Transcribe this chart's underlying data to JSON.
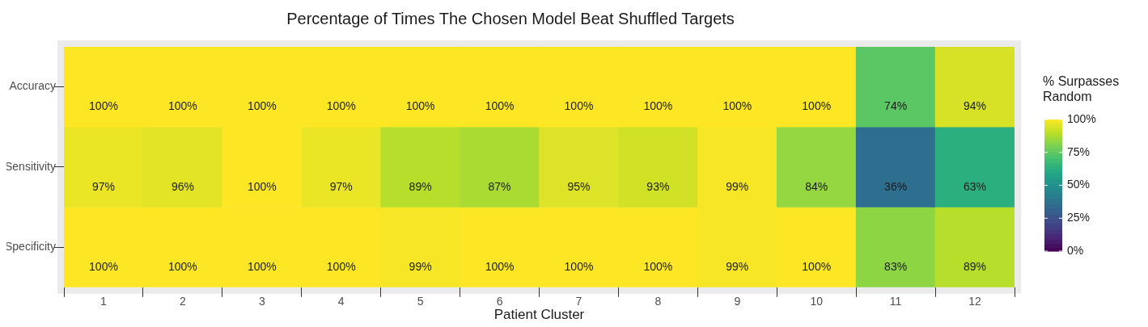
{
  "chart_data": {
    "type": "heatmap",
    "title": "Percentage of Times The Chosen Model Beat Shuffled Targets",
    "xlabel": "Patient Cluster",
    "legend_title": "% Surpasses\nRandom",
    "categories": [
      "1",
      "2",
      "3",
      "4",
      "5",
      "6",
      "7",
      "8",
      "9",
      "10",
      "11",
      "12"
    ],
    "y_categories": [
      "Accuracy",
      "Sensitivity",
      "Specificity"
    ],
    "cells": [
      [
        100,
        100,
        100,
        100,
        100,
        100,
        100,
        100,
        100,
        100,
        74,
        94
      ],
      [
        97,
        96,
        100,
        97,
        89,
        87,
        95,
        93,
        99,
        84,
        36,
        63
      ],
      [
        100,
        100,
        100,
        100,
        99,
        100,
        100,
        100,
        99,
        100,
        83,
        89
      ]
    ],
    "cell_labels": [
      [
        "100%",
        "100%",
        "100%",
        "100%",
        "100%",
        "100%",
        "100%",
        "100%",
        "100%",
        "100%",
        "74%",
        "94%"
      ],
      [
        "97%",
        "96%",
        "100%",
        "97%",
        "89%",
        "87%",
        "95%",
        "93%",
        "99%",
        "84%",
        "36%",
        "63%"
      ],
      [
        "100%",
        "100%",
        "100%",
        "100%",
        "99%",
        "100%",
        "100%",
        "100%",
        "99%",
        "100%",
        "83%",
        "89%"
      ]
    ],
    "clim": [
      0,
      100
    ],
    "cticks": [
      {
        "value": 0,
        "label": "0%"
      },
      {
        "value": 25,
        "label": "25%"
      },
      {
        "value": 50,
        "label": "50%"
      },
      {
        "value": 75,
        "label": "75%"
      },
      {
        "value": 100,
        "label": "100%"
      }
    ]
  }
}
